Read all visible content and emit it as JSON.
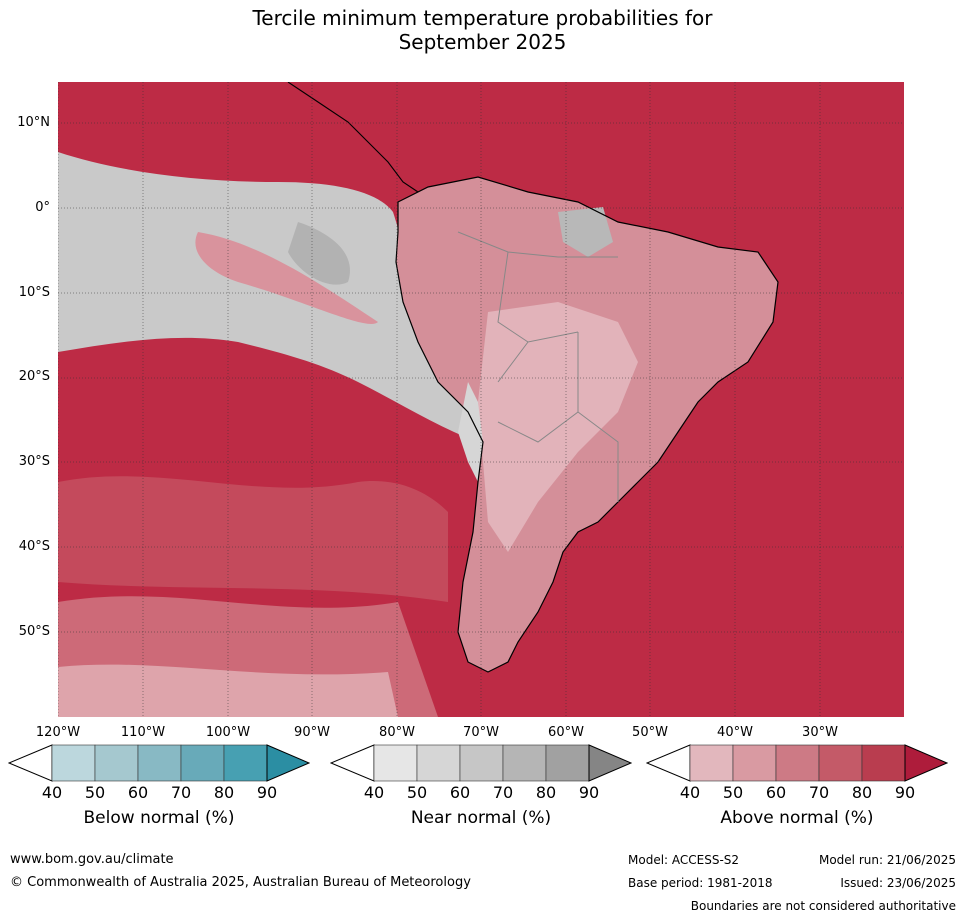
{
  "title_line1": "Tercile minimum temperature probabilities for",
  "title_line2": "September 2025",
  "lat_labels": [
    "10°N",
    "0°",
    "10°S",
    "20°S",
    "30°S",
    "40°S",
    "50°S"
  ],
  "lon_labels": [
    "120°W",
    "110°W",
    "100°W",
    "90°W",
    "80°W",
    "70°W",
    "60°W",
    "50°W",
    "40°W",
    "30°W"
  ],
  "colorbars": [
    {
      "title": "Below normal (%)",
      "ticks": [
        "40",
        "50",
        "60",
        "70",
        "80",
        "90"
      ],
      "colors": [
        "#ffffff",
        "#bcd7dd",
        "#a5c8cf",
        "#88b9c4",
        "#68aab9",
        "#47a0b2",
        "#2b8ea3"
      ]
    },
    {
      "title": "Near normal (%)",
      "ticks": [
        "40",
        "50",
        "60",
        "70",
        "80",
        "90"
      ],
      "colors": [
        "#ffffff",
        "#e6e6e6",
        "#d6d6d6",
        "#c6c6c6",
        "#b5b5b5",
        "#a1a1a1",
        "#858585"
      ]
    },
    {
      "title": "Above normal (%)",
      "ticks": [
        "40",
        "50",
        "60",
        "70",
        "80",
        "90"
      ],
      "colors": [
        "#ffffff",
        "#e2b7bd",
        "#d99aa2",
        "#cd7a85",
        "#c45a68",
        "#b93d4f",
        "#ae1c3b"
      ]
    }
  ],
  "footer": {
    "url": "www.bom.gov.au/climate",
    "copyright": "© Commonwealth of Australia 2025, Australian Bureau of Meteorology",
    "model": "Model: ACCESS-S2",
    "base_period": "Base period: 1981-2018",
    "model_run": "Model run: 21/06/2025",
    "issued": "Issued: 23/06/2025",
    "disclaimer": "Boundaries are not considered authoritative"
  },
  "map_colors": {
    "ocean_above_high": "#b8213f",
    "above_mid": "#c85a6a",
    "above_low": "#d99aa2",
    "above_pale": "#e4bcc2",
    "near_grey": "#cfcfcf",
    "near_dark": "#b0b0b0",
    "coast": "#000000",
    "border": "#888888"
  }
}
